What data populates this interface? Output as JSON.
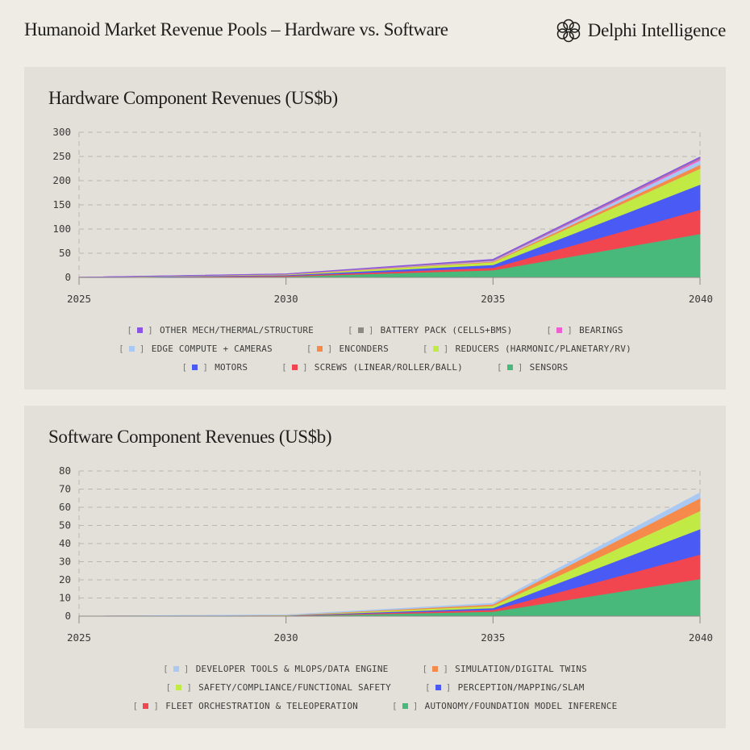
{
  "header": {
    "title": "Humanoid Market Revenue Pools – Hardware vs. Software",
    "brand": "Delphi Intelligence"
  },
  "chart_data": [
    {
      "type": "area",
      "title": "Hardware Component Revenues (US$b)",
      "xlabel": "",
      "ylabel": "",
      "x": [
        2025,
        2030,
        2035,
        2040
      ],
      "xticks": [
        "2025",
        "2030",
        "2035",
        "2040"
      ],
      "ylim": [
        0,
        300
      ],
      "yticks": [
        "0",
        "50",
        "100",
        "150",
        "200",
        "250",
        "300"
      ],
      "stacked": true,
      "grid": true,
      "legend_position": "bottom",
      "series": [
        {
          "name": "SENSORS",
          "color": "#48b97a",
          "values": [
            0.1,
            2.0,
            15.0,
            90.0
          ]
        },
        {
          "name": "SCREWS (LINEAR/ROLLER/BALL)",
          "color": "#f1464f",
          "values": [
            0.05,
            1.5,
            5.0,
            50.0
          ]
        },
        {
          "name": "MOTORS",
          "color": "#4a5bf5",
          "values": [
            0.05,
            1.5,
            6.0,
            52.0
          ]
        },
        {
          "name": "REDUCERS (HARMONIC/PLANETARY/RV)",
          "color": "#c2ea45",
          "values": [
            0.05,
            1.0,
            5.5,
            33.0
          ]
        },
        {
          "name": "ENCONDERS",
          "color": "#f58a4b",
          "values": [
            0.02,
            0.4,
            1.5,
            8.0
          ]
        },
        {
          "name": "EDGE COMPUTE + CAMERAS",
          "color": "#a9c8f2",
          "values": [
            0.02,
            0.3,
            1.2,
            9.0
          ]
        },
        {
          "name": "BEARINGS",
          "color": "#ef5fd0",
          "values": [
            0.01,
            0.2,
            0.8,
            3.5
          ]
        },
        {
          "name": "BATTERY PACK (CELLS+BMS)",
          "color": "#8d8a86",
          "values": [
            0.01,
            0.3,
            1.2,
            2.0
          ]
        },
        {
          "name": "OTHER MECH/THERMAL/STRUCTURE",
          "color": "#8b54e6",
          "values": [
            0.01,
            0.3,
            1.3,
            1.5
          ]
        }
      ],
      "legend_rows": [
        [
          "OTHER MECH/THERMAL/STRUCTURE",
          "BATTERY PACK (CELLS+BMS)",
          "BEARINGS"
        ],
        [
          "EDGE COMPUTE + CAMERAS",
          "ENCONDERS",
          "REDUCERS (HARMONIC/PLANETARY/RV)"
        ],
        [
          "MOTORS",
          "SCREWS (LINEAR/ROLLER/BALL)",
          "SENSORS"
        ]
      ]
    },
    {
      "type": "area",
      "title": "Software Component Revenues (US$b)",
      "xlabel": "",
      "ylabel": "",
      "x": [
        2025,
        2030,
        2035,
        2040
      ],
      "xticks": [
        "2025",
        "2030",
        "2035",
        "2040"
      ],
      "ylim": [
        0,
        80
      ],
      "yticks": [
        "0",
        "10",
        "20",
        "30",
        "40",
        "50",
        "60",
        "70",
        "80"
      ],
      "stacked": true,
      "grid": true,
      "legend_position": "bottom",
      "series": [
        {
          "name": "AUTONOMY/FOUNDATION MODEL INFERENCE",
          "color": "#48b97a",
          "values": [
            0.0,
            0.2,
            2.5,
            20.5
          ]
        },
        {
          "name": "FLEET ORCHESTRATION & TELEOPERATION",
          "color": "#f1464f",
          "values": [
            0.0,
            0.1,
            1.0,
            13.5
          ]
        },
        {
          "name": "PERCEPTION/MAPPING/SLAM",
          "color": "#4a5bf5",
          "values": [
            0.0,
            0.1,
            1.0,
            14.0
          ]
        },
        {
          "name": "SAFETY/COMPLIANCE/FUNCTIONAL SAFETY",
          "color": "#c2ea45",
          "values": [
            0.0,
            0.1,
            1.2,
            10.0
          ]
        },
        {
          "name": "SIMULATION/DIGITAL TWINS",
          "color": "#f58a4b",
          "values": [
            0.0,
            0.1,
            0.8,
            7.0
          ]
        },
        {
          "name": "DEVELOPER TOOLS & MLOPS/DATA ENGINE",
          "color": "#a9c8f2",
          "values": [
            0.0,
            0.1,
            0.6,
            3.0
          ]
        }
      ],
      "legend_rows": [
        [
          "DEVELOPER TOOLS & MLOPS/DATA ENGINE",
          "SIMULATION/DIGITAL TWINS"
        ],
        [
          "SAFETY/COMPLIANCE/FUNCTIONAL SAFETY",
          "PERCEPTION/MAPPING/SLAM"
        ],
        [
          "FLEET ORCHESTRATION & TELEOPERATION",
          "AUTONOMY/FOUNDATION MODEL INFERENCE"
        ]
      ]
    }
  ]
}
